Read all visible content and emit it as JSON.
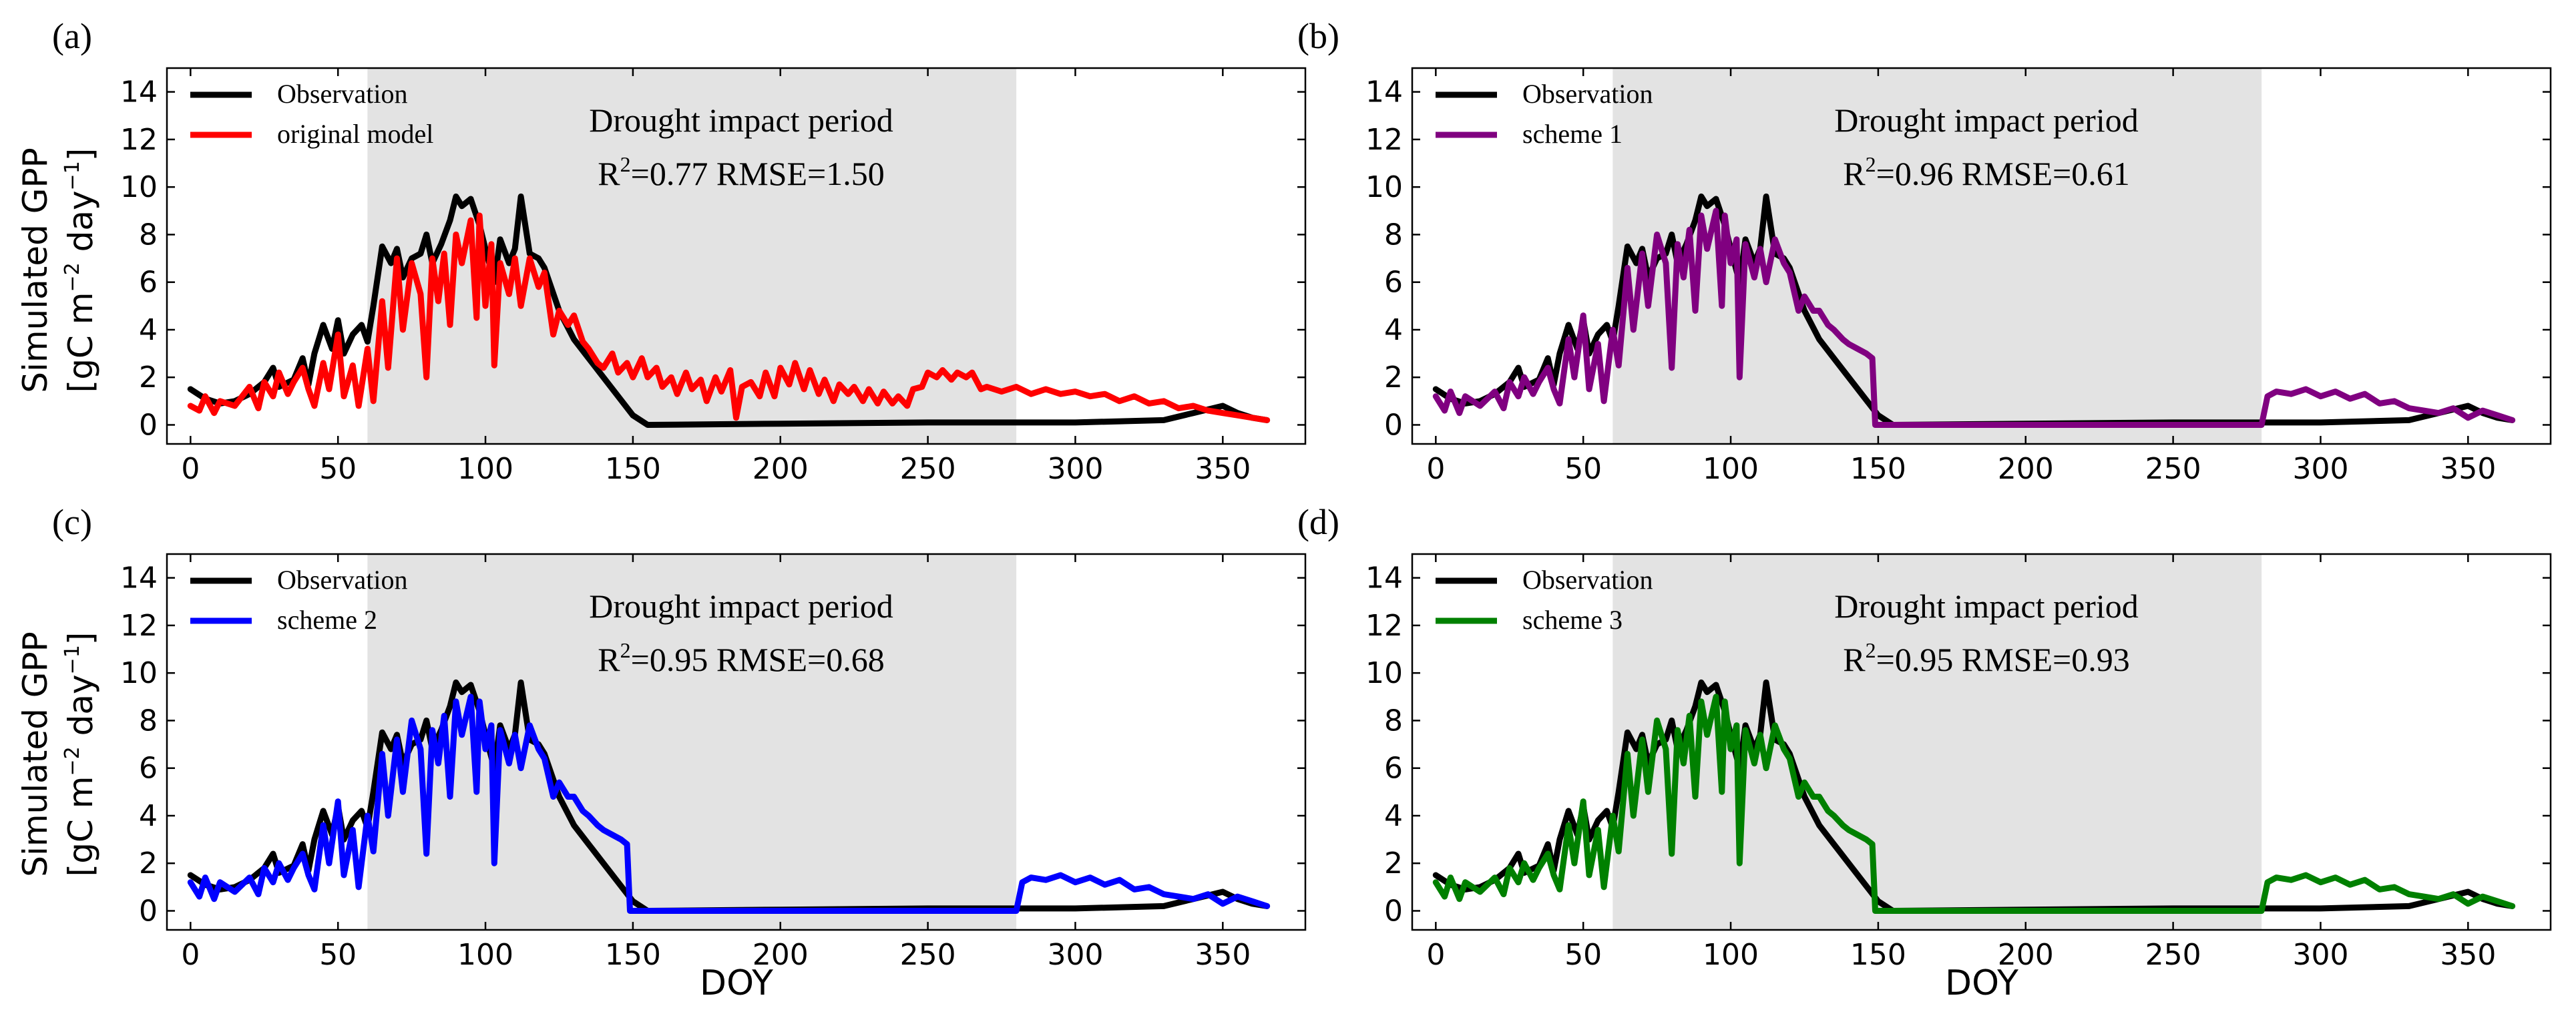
{
  "figure": {
    "ylabel_line1": "Simulated GPP",
    "ylabel_line2_prefix": "[gC m",
    "ylabel_sup1": "−2",
    "ylabel_mid": " day",
    "ylabel_sup2": "−1",
    "ylabel_suffix": "]",
    "xlabel": "DOY"
  },
  "chart_data": [
    {
      "panel": "(a)",
      "type": "line",
      "xlim": [
        -8,
        378
      ],
      "ylim": [
        -0.8,
        15
      ],
      "xticks": [
        0,
        50,
        100,
        150,
        200,
        250,
        300,
        350
      ],
      "yticks": [
        0,
        2,
        4,
        6,
        8,
        10,
        12,
        14
      ],
      "shaded_period": [
        60,
        280
      ],
      "annotation_title": "Drought impact period",
      "annotation_r2": "R",
      "annotation_r2_sup": "2",
      "annotation_stats": "=0.77  RMSE=1.50",
      "legend": [
        "Observation",
        "original model"
      ],
      "series_colors": [
        "#000000",
        "#ff0000"
      ],
      "model_key": "original"
    },
    {
      "panel": "(b)",
      "type": "line",
      "xlim": [
        -8,
        378
      ],
      "ylim": [
        -0.8,
        15
      ],
      "xticks": [
        0,
        50,
        100,
        150,
        200,
        250,
        300,
        350
      ],
      "yticks": [
        0,
        2,
        4,
        6,
        8,
        10,
        12,
        14
      ],
      "shaded_period": [
        60,
        280
      ],
      "annotation_title": "Drought impact period",
      "annotation_r2": "R",
      "annotation_r2_sup": "2",
      "annotation_stats": "=0.96  RMSE=0.61",
      "legend": [
        "Observation",
        "scheme 1"
      ],
      "series_colors": [
        "#000000",
        "#800080"
      ],
      "model_key": "scheme"
    },
    {
      "panel": "(c)",
      "type": "line",
      "xlim": [
        -8,
        378
      ],
      "ylim": [
        -0.8,
        15
      ],
      "xticks": [
        0,
        50,
        100,
        150,
        200,
        250,
        300,
        350
      ],
      "yticks": [
        0,
        2,
        4,
        6,
        8,
        10,
        12,
        14
      ],
      "shaded_period": [
        60,
        280
      ],
      "annotation_title": "Drought impact period",
      "annotation_r2": "R",
      "annotation_r2_sup": "2",
      "annotation_stats": "=0.95  RMSE=0.68",
      "legend": [
        "Observation",
        "scheme 2"
      ],
      "series_colors": [
        "#000000",
        "#0000ff"
      ],
      "model_key": "scheme"
    },
    {
      "panel": "(d)",
      "type": "line",
      "xlim": [
        -8,
        378
      ],
      "ylim": [
        -0.8,
        15
      ],
      "xticks": [
        0,
        50,
        100,
        150,
        200,
        250,
        300,
        350
      ],
      "yticks": [
        0,
        2,
        4,
        6,
        8,
        10,
        12,
        14
      ],
      "shaded_period": [
        60,
        280
      ],
      "annotation_title": "Drought impact period",
      "annotation_r2": "R",
      "annotation_r2_sup": "2",
      "annotation_stats": "=0.95  RMSE=0.93",
      "legend": [
        "Observation",
        "scheme 3"
      ],
      "series_colors": [
        "#000000",
        "#008000"
      ],
      "model_key": "scheme"
    }
  ],
  "series_values": {
    "observation": [
      [
        0,
        1.5
      ],
      [
        5,
        1.1
      ],
      [
        10,
        0.9
      ],
      [
        15,
        1.0
      ],
      [
        20,
        1.3
      ],
      [
        25,
        1.8
      ],
      [
        28,
        2.4
      ],
      [
        30,
        1.6
      ],
      [
        35,
        1.9
      ],
      [
        38,
        2.8
      ],
      [
        40,
        1.7
      ],
      [
        42,
        3.0
      ],
      [
        45,
        4.2
      ],
      [
        48,
        3.2
      ],
      [
        50,
        4.4
      ],
      [
        52,
        3.0
      ],
      [
        55,
        3.8
      ],
      [
        58,
        4.2
      ],
      [
        60,
        3.5
      ],
      [
        62,
        5.0
      ],
      [
        65,
        7.5
      ],
      [
        68,
        6.8
      ],
      [
        70,
        7.4
      ],
      [
        72,
        6.2
      ],
      [
        75,
        7.0
      ],
      [
        78,
        7.2
      ],
      [
        80,
        8.0
      ],
      [
        82,
        6.8
      ],
      [
        85,
        7.6
      ],
      [
        88,
        8.6
      ],
      [
        90,
        9.6
      ],
      [
        92,
        9.2
      ],
      [
        95,
        9.5
      ],
      [
        98,
        8.4
      ],
      [
        100,
        7.4
      ],
      [
        103,
        6.0
      ],
      [
        105,
        7.8
      ],
      [
        108,
        6.8
      ],
      [
        110,
        7.4
      ],
      [
        112,
        9.6
      ],
      [
        115,
        7.2
      ],
      [
        118,
        7.0
      ],
      [
        120,
        6.6
      ],
      [
        125,
        4.8
      ],
      [
        130,
        3.6
      ],
      [
        135,
        2.8
      ],
      [
        140,
        2.0
      ],
      [
        145,
        1.2
      ],
      [
        150,
        0.4
      ],
      [
        155,
        0.0
      ],
      [
        200,
        0.05
      ],
      [
        250,
        0.1
      ],
      [
        300,
        0.1
      ],
      [
        330,
        0.2
      ],
      [
        340,
        0.5
      ],
      [
        350,
        0.8
      ],
      [
        355,
        0.5
      ],
      [
        360,
        0.3
      ],
      [
        365,
        0.2
      ]
    ],
    "original": [
      [
        0,
        0.8
      ],
      [
        3,
        0.6
      ],
      [
        5,
        1.2
      ],
      [
        8,
        0.5
      ],
      [
        10,
        1.0
      ],
      [
        15,
        0.8
      ],
      [
        20,
        1.6
      ],
      [
        23,
        0.7
      ],
      [
        25,
        1.8
      ],
      [
        28,
        1.2
      ],
      [
        30,
        2.2
      ],
      [
        33,
        1.3
      ],
      [
        35,
        1.8
      ],
      [
        38,
        2.4
      ],
      [
        40,
        1.5
      ],
      [
        42,
        0.8
      ],
      [
        45,
        2.6
      ],
      [
        47,
        1.5
      ],
      [
        50,
        3.8
      ],
      [
        52,
        1.2
      ],
      [
        55,
        2.5
      ],
      [
        57,
        0.8
      ],
      [
        60,
        3.2
      ],
      [
        62,
        1.0
      ],
      [
        65,
        5.2
      ],
      [
        67,
        2.4
      ],
      [
        70,
        7.0
      ],
      [
        72,
        4.0
      ],
      [
        75,
        6.8
      ],
      [
        78,
        5.5
      ],
      [
        80,
        2.0
      ],
      [
        82,
        7.0
      ],
      [
        84,
        5.2
      ],
      [
        86,
        7.2
      ],
      [
        88,
        4.2
      ],
      [
        90,
        8.0
      ],
      [
        92,
        6.8
      ],
      [
        95,
        8.6
      ],
      [
        97,
        4.5
      ],
      [
        98,
        8.8
      ],
      [
        100,
        5.0
      ],
      [
        102,
        7.6
      ],
      [
        103,
        2.5
      ],
      [
        105,
        6.8
      ],
      [
        108,
        5.5
      ],
      [
        110,
        7.0
      ],
      [
        112,
        5.0
      ],
      [
        115,
        7.0
      ],
      [
        118,
        5.8
      ],
      [
        120,
        6.4
      ],
      [
        123,
        3.8
      ],
      [
        125,
        4.8
      ],
      [
        128,
        4.2
      ],
      [
        130,
        4.6
      ],
      [
        133,
        3.5
      ],
      [
        135,
        3.2
      ],
      [
        138,
        2.6
      ],
      [
        140,
        2.4
      ],
      [
        143,
        3.0
      ],
      [
        145,
        2.2
      ],
      [
        148,
        2.6
      ],
      [
        150,
        2.0
      ],
      [
        153,
        2.8
      ],
      [
        155,
        2.0
      ],
      [
        158,
        2.4
      ],
      [
        160,
        1.6
      ],
      [
        163,
        2.0
      ],
      [
        165,
        1.3
      ],
      [
        168,
        2.2
      ],
      [
        170,
        1.5
      ],
      [
        173,
        1.9
      ],
      [
        175,
        1.0
      ],
      [
        178,
        2.0
      ],
      [
        180,
        1.4
      ],
      [
        183,
        2.3
      ],
      [
        185,
        0.3
      ],
      [
        187,
        1.6
      ],
      [
        190,
        1.8
      ],
      [
        193,
        1.2
      ],
      [
        195,
        2.2
      ],
      [
        198,
        1.2
      ],
      [
        200,
        2.4
      ],
      [
        203,
        1.7
      ],
      [
        205,
        2.6
      ],
      [
        208,
        1.5
      ],
      [
        210,
        2.3
      ],
      [
        213,
        1.3
      ],
      [
        215,
        1.9
      ],
      [
        218,
        1.0
      ],
      [
        220,
        1.7
      ],
      [
        223,
        1.3
      ],
      [
        225,
        1.6
      ],
      [
        228,
        1.0
      ],
      [
        230,
        1.5
      ],
      [
        233,
        0.9
      ],
      [
        235,
        1.4
      ],
      [
        238,
        0.9
      ],
      [
        240,
        1.2
      ],
      [
        243,
        0.8
      ],
      [
        245,
        1.5
      ],
      [
        248,
        1.6
      ],
      [
        250,
        2.2
      ],
      [
        253,
        2.0
      ],
      [
        255,
        2.3
      ],
      [
        258,
        1.9
      ],
      [
        260,
        2.2
      ],
      [
        263,
        2.0
      ],
      [
        265,
        2.2
      ],
      [
        268,
        1.5
      ],
      [
        270,
        1.6
      ],
      [
        275,
        1.4
      ],
      [
        280,
        1.6
      ],
      [
        285,
        1.3
      ],
      [
        290,
        1.5
      ],
      [
        295,
        1.3
      ],
      [
        300,
        1.4
      ],
      [
        305,
        1.2
      ],
      [
        310,
        1.3
      ],
      [
        315,
        1.0
      ],
      [
        320,
        1.2
      ],
      [
        325,
        0.9
      ],
      [
        330,
        1.0
      ],
      [
        335,
        0.7
      ],
      [
        340,
        0.8
      ],
      [
        345,
        0.6
      ],
      [
        350,
        0.5
      ],
      [
        355,
        0.4
      ],
      [
        360,
        0.3
      ],
      [
        365,
        0.2
      ]
    ],
    "scheme": [
      [
        0,
        1.2
      ],
      [
        3,
        0.6
      ],
      [
        5,
        1.4
      ],
      [
        8,
        0.5
      ],
      [
        10,
        1.2
      ],
      [
        15,
        0.8
      ],
      [
        20,
        1.4
      ],
      [
        23,
        0.7
      ],
      [
        25,
        1.8
      ],
      [
        28,
        1.2
      ],
      [
        30,
        2.0
      ],
      [
        33,
        1.3
      ],
      [
        35,
        1.8
      ],
      [
        38,
        2.4
      ],
      [
        40,
        1.5
      ],
      [
        42,
        0.9
      ],
      [
        45,
        3.6
      ],
      [
        47,
        2.0
      ],
      [
        50,
        4.6
      ],
      [
        52,
        1.5
      ],
      [
        55,
        3.4
      ],
      [
        57,
        1.0
      ],
      [
        60,
        4.0
      ],
      [
        62,
        2.5
      ],
      [
        65,
        6.6
      ],
      [
        67,
        4.0
      ],
      [
        70,
        7.2
      ],
      [
        72,
        5.0
      ],
      [
        75,
        8.0
      ],
      [
        78,
        6.8
      ],
      [
        80,
        2.4
      ],
      [
        82,
        7.6
      ],
      [
        84,
        6.2
      ],
      [
        86,
        8.2
      ],
      [
        88,
        4.8
      ],
      [
        90,
        8.8
      ],
      [
        92,
        7.4
      ],
      [
        95,
        9.0
      ],
      [
        97,
        5.0
      ],
      [
        98,
        8.8
      ],
      [
        100,
        6.8
      ],
      [
        102,
        7.8
      ],
      [
        103,
        2.0
      ],
      [
        105,
        7.6
      ],
      [
        108,
        6.2
      ],
      [
        110,
        7.4
      ],
      [
        112,
        6.0
      ],
      [
        115,
        7.8
      ],
      [
        118,
        6.8
      ],
      [
        120,
        6.4
      ],
      [
        123,
        4.8
      ],
      [
        125,
        5.4
      ],
      [
        128,
        4.8
      ],
      [
        130,
        4.8
      ],
      [
        133,
        4.2
      ],
      [
        135,
        4.0
      ],
      [
        138,
        3.6
      ],
      [
        140,
        3.4
      ],
      [
        143,
        3.2
      ],
      [
        146,
        3.0
      ],
      [
        148,
        2.8
      ],
      [
        149,
        0.0
      ],
      [
        200,
        0.0
      ],
      [
        280,
        0.0
      ],
      [
        282,
        1.2
      ],
      [
        285,
        1.4
      ],
      [
        290,
        1.3
      ],
      [
        295,
        1.5
      ],
      [
        300,
        1.2
      ],
      [
        305,
        1.4
      ],
      [
        310,
        1.1
      ],
      [
        315,
        1.3
      ],
      [
        320,
        0.9
      ],
      [
        325,
        1.0
      ],
      [
        330,
        0.7
      ],
      [
        335,
        0.6
      ],
      [
        340,
        0.5
      ],
      [
        345,
        0.7
      ],
      [
        350,
        0.3
      ],
      [
        355,
        0.6
      ],
      [
        360,
        0.4
      ],
      [
        365,
        0.2
      ]
    ]
  }
}
